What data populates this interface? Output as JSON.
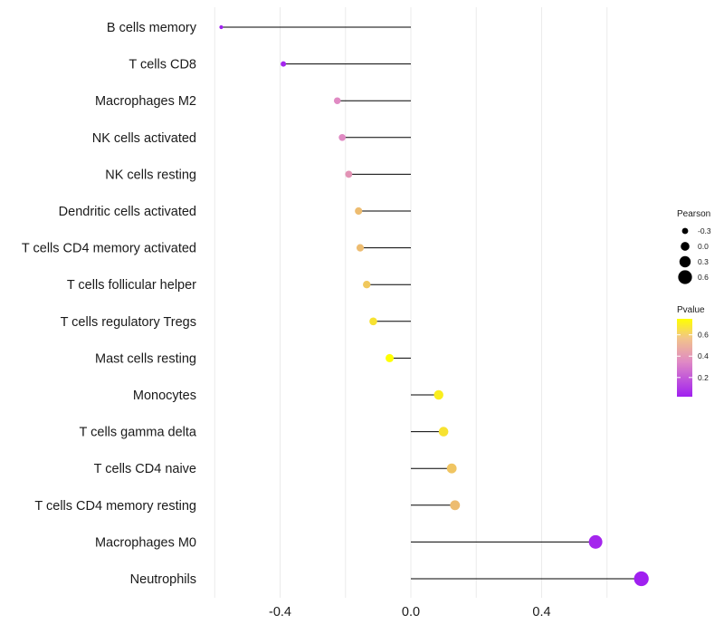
{
  "chart_data": {
    "type": "lollipop",
    "title": "",
    "xlabel": "",
    "ylabel": "",
    "xlim": [
      -0.6,
      0.72
    ],
    "x_ticks": [
      -0.4,
      0.0,
      0.4
    ],
    "x_tick_labels": [
      "-0.4",
      "0.0",
      "0.4"
    ],
    "minor_grid": [
      -0.6,
      -0.2,
      0.2,
      0.6
    ],
    "grid": true,
    "baseline": 0.0,
    "categories": [
      "B cells memory",
      "T cells CD8",
      "Macrophages M2",
      "NK cells activated",
      "NK cells resting",
      "Dendritic cells activated",
      "T cells CD4 memory activated",
      "T cells follicular helper",
      "T cells regulatory  Tregs ",
      "Mast cells resting",
      "Monocytes",
      "T cells gamma delta",
      "T cells CD4 naive",
      "T cells CD4 memory resting",
      "Macrophages M0",
      "Neutrophils"
    ],
    "pearson": [
      -0.58,
      -0.39,
      -0.225,
      -0.21,
      -0.19,
      -0.16,
      -0.155,
      -0.135,
      -0.115,
      -0.065,
      0.085,
      0.1,
      0.125,
      0.135,
      0.565,
      0.705
    ],
    "pvalue": [
      0.02,
      0.04,
      0.35,
      0.35,
      0.38,
      0.52,
      0.52,
      0.56,
      0.65,
      0.75,
      0.69,
      0.65,
      0.55,
      0.52,
      0.04,
      0.02
    ],
    "legend": {
      "size": {
        "title": "Pearson",
        "values": [
          -0.3,
          0.0,
          0.3,
          0.6
        ],
        "labels": [
          "-0.3",
          "0.0",
          "0.3",
          "0.6"
        ]
      },
      "color": {
        "title": "Pvalue",
        "range": [
          0.02,
          0.75
        ],
        "ticks": [
          0.2,
          0.4,
          0.6
        ],
        "tick_labels": [
          "0.2",
          "0.4",
          "0.6"
        ],
        "low_color": "#a020f0",
        "mid_color": "#e78ac3",
        "high_color": "#ffff00"
      },
      "position": "right"
    }
  }
}
